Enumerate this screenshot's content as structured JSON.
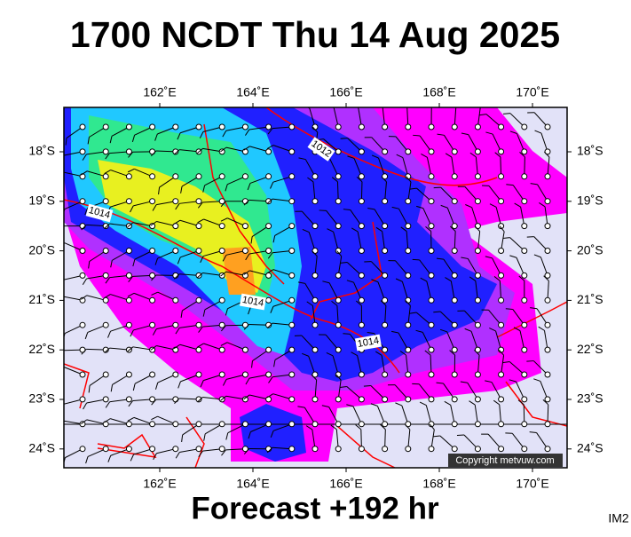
{
  "header": {
    "title": "1700 NCDT Thu 14 Aug 2025"
  },
  "map": {
    "lon_labels": [
      "162˚E",
      "164˚E",
      "166˚E",
      "168˚E",
      "170˚E"
    ],
    "lat_labels": [
      "18˚S",
      "19˚S",
      "20˚S",
      "21˚S",
      "22˚S",
      "23˚S",
      "24˚S"
    ],
    "isobar_labels": [
      "1012",
      "1014",
      "1014",
      "1014"
    ],
    "copyright": "Copyright metvuw.com"
  },
  "footer": {
    "forecast": "Forecast +192 hr",
    "id": "IM2"
  }
}
